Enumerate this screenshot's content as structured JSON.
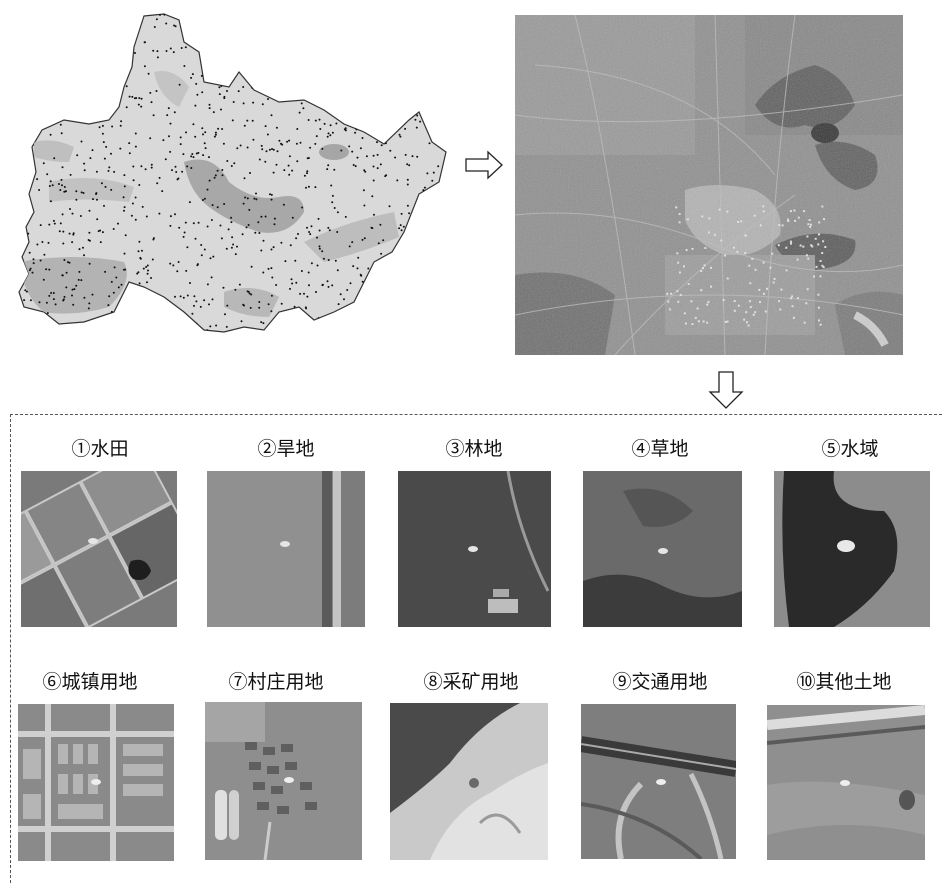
{
  "classes": [
    {
      "num": "①",
      "name": "水田"
    },
    {
      "num": "②",
      "name": "旱地"
    },
    {
      "num": "③",
      "name": "林地"
    },
    {
      "num": "④",
      "name": "草地"
    },
    {
      "num": "⑤",
      "name": "水域"
    },
    {
      "num": "⑥",
      "name": "城镇用地"
    },
    {
      "num": "⑦",
      "name": "村庄用地"
    },
    {
      "num": "⑧",
      "name": "采矿用地"
    },
    {
      "num": "⑨",
      "name": "交通用地"
    },
    {
      "num": "⑩",
      "name": "其他土地"
    }
  ]
}
